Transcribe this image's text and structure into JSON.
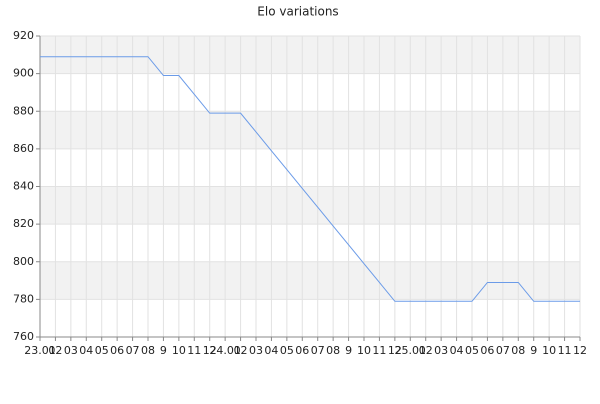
{
  "chart_data": {
    "type": "line",
    "title": "Elo variations",
    "categories": [
      "23.01",
      "02",
      "03",
      "04",
      "05",
      "06",
      "07",
      "08",
      "9",
      "10",
      "11",
      "12",
      "24.01",
      "02",
      "03",
      "04",
      "05",
      "06",
      "07",
      "08",
      "9",
      "10",
      "11",
      "12",
      "25.01",
      "02",
      "03",
      "04",
      "05",
      "06",
      "07",
      "08",
      "9",
      "10",
      "11",
      "12"
    ],
    "series": [
      {
        "color": "#6b9be8",
        "values": [
          909,
          909,
          909,
          909,
          909,
          909,
          909,
          909,
          899,
          899,
          889,
          879,
          879,
          879,
          869,
          859,
          849,
          839,
          829,
          819,
          809,
          799,
          789,
          779,
          779,
          779,
          779,
          779,
          779,
          789,
          789,
          789,
          779,
          779,
          779,
          779
        ]
      }
    ],
    "ylim": [
      760,
      920
    ],
    "yticks": [
      760,
      780,
      800,
      820,
      840,
      860,
      880,
      900,
      920
    ],
    "grid": true,
    "alternate_bands": true
  }
}
